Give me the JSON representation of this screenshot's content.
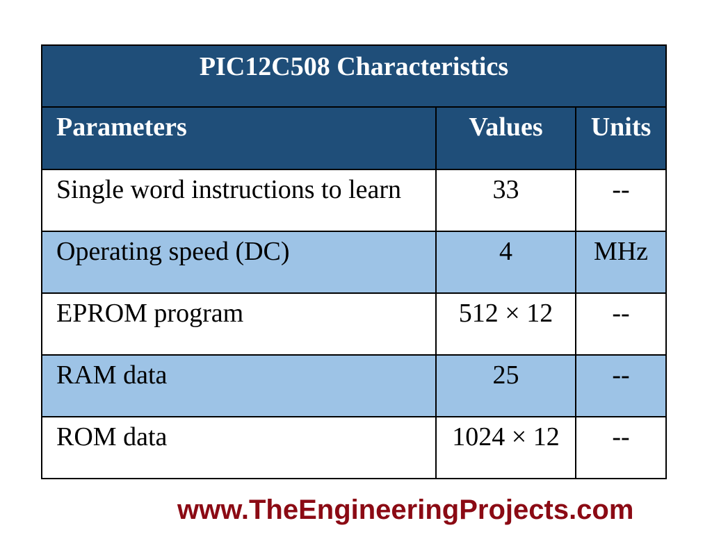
{
  "table": {
    "title": "PIC12C508 Characteristics",
    "headers": {
      "parameter": "Parameters",
      "value": "Values",
      "unit": "Units"
    },
    "rows": [
      {
        "parameter": "Single word instructions to learn",
        "value": "33",
        "unit": "--"
      },
      {
        "parameter": "Operating speed (DC)",
        "value": "4",
        "unit": "MHz"
      },
      {
        "parameter": "EPROM program",
        "value": "512 × 12",
        "unit": "--"
      },
      {
        "parameter": "RAM data",
        "value": "25",
        "unit": "--"
      },
      {
        "parameter": "ROM data",
        "value": "1024 × 12",
        "unit": "--"
      }
    ]
  },
  "watermark": "www.TheEngineeringProjects.com",
  "colors": {
    "header_bg": "#1f4e79",
    "alt_row_bg": "#9dc3e6",
    "watermark": "#8b0a14"
  }
}
